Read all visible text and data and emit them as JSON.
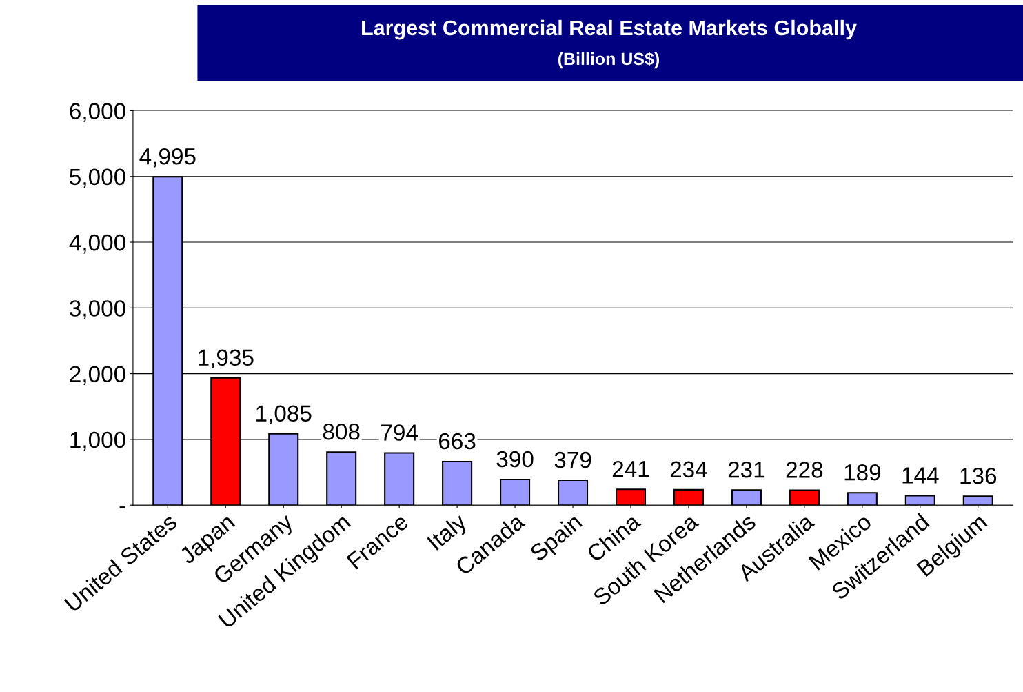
{
  "chart_data": {
    "type": "bar",
    "title": "Largest Commercial Real Estate Markets Globally",
    "subtitle": "(Billion US$)",
    "categories": [
      "United States",
      "Japan",
      "Germany",
      "United Kingdom",
      "France",
      "Italy",
      "Canada",
      "Spain",
      "China",
      "South Korea",
      "Netherlands",
      "Australia",
      "Mexico",
      "Switzerland",
      "Belgium"
    ],
    "values": [
      4995,
      1935,
      1085,
      808,
      794,
      663,
      390,
      379,
      241,
      234,
      231,
      228,
      189,
      144,
      136
    ],
    "colors": [
      "#9999ff",
      "#ff0000",
      "#9999ff",
      "#9999ff",
      "#9999ff",
      "#9999ff",
      "#9999ff",
      "#9999ff",
      "#ff0000",
      "#ff0000",
      "#9999ff",
      "#ff0000",
      "#9999ff",
      "#9999ff",
      "#9999ff"
    ],
    "value_labels": [
      "4,995",
      "1,935",
      "1,085",
      "808",
      "794",
      "663",
      "390",
      "379",
      "241",
      "234",
      "231",
      "228",
      "189",
      "144",
      "136"
    ],
    "ylim": [
      0,
      6000
    ],
    "yticks": [
      {
        "value": 0,
        "label": "-"
      },
      {
        "value": 1000,
        "label": "1,000"
      },
      {
        "value": 2000,
        "label": "2,000"
      },
      {
        "value": 3000,
        "label": "3,000"
      },
      {
        "value": 4000,
        "label": "4,000"
      },
      {
        "value": 5000,
        "label": "5,000"
      },
      {
        "value": 6000,
        "label": "6,000"
      }
    ],
    "grid": "y"
  }
}
